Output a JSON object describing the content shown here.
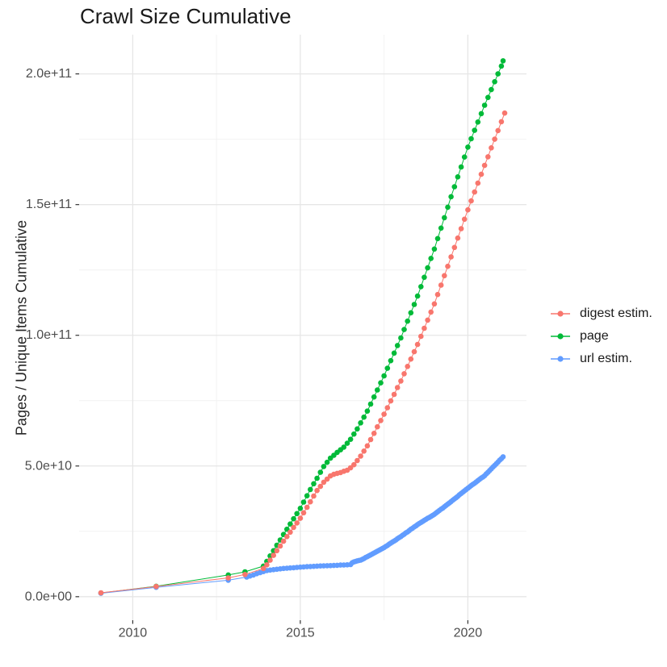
{
  "chart_data": {
    "type": "line",
    "points_visible": true,
    "title": "Crawl Size Cumulative",
    "xlabel": "",
    "ylabel": "Pages / Unique Items Cumulative",
    "units": "pages (values stored in billions, 1e9)",
    "grid": true,
    "legend": {
      "position": "right",
      "entries": [
        "digest estim.",
        "page",
        "url estim."
      ]
    },
    "x_axis": {
      "range": [
        2008.4,
        2021.75
      ],
      "ticks": [
        2010,
        2015,
        2020
      ],
      "tick_labels": [
        "2010",
        "2015",
        "2020"
      ],
      "minor_ticks": [
        2012.5,
        2017.5
      ]
    },
    "y_axis": {
      "range_billions": [
        -9,
        215
      ],
      "ticks_billions": [
        0,
        50,
        100,
        150,
        200
      ],
      "tick_labels": [
        "0.0e+00",
        "5.0e+10",
        "1.0e+11",
        "1.5e+11",
        "2.0e+11"
      ],
      "minor_ticks_billions": [
        25,
        75,
        125,
        175
      ]
    },
    "colors": {
      "digest": "#F8766D",
      "page": "#00BA38",
      "url": "#619CFF",
      "grid_major": "#e6e6e6",
      "grid_minor": "#f2f2f2",
      "tick_text": "#4d4d4d",
      "tick_mark": "#333333"
    },
    "series": [
      {
        "name": "digest estim.",
        "color": "#F8766D",
        "points": [
          [
            2009.05,
            1.5
          ],
          [
            2010.7,
            3.9
          ],
          [
            2012.85,
            7.2
          ],
          [
            2013.35,
            8.5
          ],
          [
            2013.9,
            10.8
          ],
          [
            2014.0,
            12.2
          ],
          [
            2014.1,
            14.0
          ],
          [
            2014.2,
            15.8
          ],
          [
            2014.3,
            17.6
          ],
          [
            2014.4,
            19.4
          ],
          [
            2014.5,
            21.2
          ],
          [
            2014.6,
            23.0
          ],
          [
            2014.7,
            24.7
          ],
          [
            2014.8,
            26.5
          ],
          [
            2014.9,
            28.2
          ],
          [
            2015.0,
            30.0
          ],
          [
            2015.1,
            32.1
          ],
          [
            2015.2,
            34.2
          ],
          [
            2015.3,
            36.3
          ],
          [
            2015.4,
            38.5
          ],
          [
            2015.5,
            40.6
          ],
          [
            2015.6,
            42.2
          ],
          [
            2015.7,
            43.8
          ],
          [
            2015.8,
            45.0
          ],
          [
            2015.9,
            46.2
          ],
          [
            2016.0,
            46.8
          ],
          [
            2016.1,
            47.2
          ],
          [
            2016.2,
            47.5
          ],
          [
            2016.3,
            48.0
          ],
          [
            2016.4,
            48.4
          ],
          [
            2016.5,
            49.3
          ],
          [
            2016.6,
            50.5
          ],
          [
            2016.7,
            52.1
          ],
          [
            2016.8,
            53.8
          ],
          [
            2016.9,
            55.7
          ],
          [
            2017.0,
            57.7
          ],
          [
            2017.1,
            60.1
          ],
          [
            2017.2,
            62.5
          ],
          [
            2017.3,
            65.0
          ],
          [
            2017.4,
            67.4
          ],
          [
            2017.5,
            69.8
          ],
          [
            2017.6,
            72.3
          ],
          [
            2017.7,
            74.9
          ],
          [
            2017.8,
            77.4
          ],
          [
            2017.9,
            80.0
          ],
          [
            2018.0,
            82.5
          ],
          [
            2018.1,
            85.3
          ],
          [
            2018.2,
            88.1
          ],
          [
            2018.3,
            90.9
          ],
          [
            2018.4,
            93.7
          ],
          [
            2018.5,
            96.5
          ],
          [
            2018.6,
            99.6
          ],
          [
            2018.7,
            102.7
          ],
          [
            2018.8,
            105.8
          ],
          [
            2018.9,
            108.9
          ],
          [
            2019.0,
            112.0
          ],
          [
            2019.1,
            115.6
          ],
          [
            2019.2,
            119.2
          ],
          [
            2019.3,
            122.8
          ],
          [
            2019.4,
            126.4
          ],
          [
            2019.5,
            130.0
          ],
          [
            2019.6,
            133.6
          ],
          [
            2019.7,
            137.2
          ],
          [
            2019.8,
            140.8
          ],
          [
            2019.9,
            144.4
          ],
          [
            2020.0,
            148.0
          ],
          [
            2020.1,
            151.4
          ],
          [
            2020.2,
            154.8
          ],
          [
            2020.3,
            158.2
          ],
          [
            2020.4,
            161.6
          ],
          [
            2020.5,
            165.0
          ],
          [
            2020.6,
            168.3
          ],
          [
            2020.7,
            171.7
          ],
          [
            2020.8,
            175.0
          ],
          [
            2020.9,
            178.3
          ],
          [
            2021.0,
            181.7
          ],
          [
            2021.1,
            185.0
          ]
        ]
      },
      {
        "name": "page",
        "color": "#00BA38",
        "points": [
          [
            2009.05,
            1.4
          ],
          [
            2010.7,
            4.0
          ],
          [
            2012.85,
            8.3
          ],
          [
            2013.35,
            9.5
          ],
          [
            2013.9,
            11.7
          ],
          [
            2014.0,
            13.5
          ],
          [
            2014.1,
            15.6
          ],
          [
            2014.2,
            17.6
          ],
          [
            2014.3,
            19.7
          ],
          [
            2014.4,
            21.7
          ],
          [
            2014.5,
            23.8
          ],
          [
            2014.6,
            25.8
          ],
          [
            2014.7,
            27.8
          ],
          [
            2014.8,
            29.8
          ],
          [
            2014.9,
            31.8
          ],
          [
            2015.0,
            33.8
          ],
          [
            2015.1,
            36.2
          ],
          [
            2015.2,
            38.6
          ],
          [
            2015.3,
            41.0
          ],
          [
            2015.4,
            43.2
          ],
          [
            2015.5,
            45.3
          ],
          [
            2015.6,
            47.6
          ],
          [
            2015.7,
            49.8
          ],
          [
            2015.8,
            51.4
          ],
          [
            2015.9,
            53.0
          ],
          [
            2016.0,
            54.1
          ],
          [
            2016.1,
            55.2
          ],
          [
            2016.2,
            56.2
          ],
          [
            2016.3,
            57.2
          ],
          [
            2016.4,
            58.7
          ],
          [
            2016.5,
            60.2
          ],
          [
            2016.6,
            62.2
          ],
          [
            2016.7,
            64.2
          ],
          [
            2016.8,
            66.5
          ],
          [
            2016.9,
            68.7
          ],
          [
            2017.0,
            71.0
          ],
          [
            2017.1,
            73.7
          ],
          [
            2017.2,
            76.4
          ],
          [
            2017.3,
            79.1
          ],
          [
            2017.4,
            81.8
          ],
          [
            2017.5,
            84.5
          ],
          [
            2017.6,
            87.4
          ],
          [
            2017.7,
            90.3
          ],
          [
            2017.8,
            93.2
          ],
          [
            2017.9,
            96.1
          ],
          [
            2018.0,
            99.0
          ],
          [
            2018.1,
            102.2
          ],
          [
            2018.2,
            105.4
          ],
          [
            2018.3,
            108.6
          ],
          [
            2018.4,
            111.8
          ],
          [
            2018.5,
            115.0
          ],
          [
            2018.6,
            118.6
          ],
          [
            2018.7,
            122.2
          ],
          [
            2018.8,
            125.8
          ],
          [
            2018.9,
            129.4
          ],
          [
            2019.0,
            133.0
          ],
          [
            2019.1,
            137.0
          ],
          [
            2019.2,
            141.0
          ],
          [
            2019.3,
            145.0
          ],
          [
            2019.4,
            149.0
          ],
          [
            2019.5,
            153.0
          ],
          [
            2019.6,
            156.8
          ],
          [
            2019.7,
            160.6
          ],
          [
            2019.8,
            164.4
          ],
          [
            2019.9,
            168.2
          ],
          [
            2020.0,
            172.0
          ],
          [
            2020.1,
            175.2
          ],
          [
            2020.2,
            178.4
          ],
          [
            2020.3,
            181.6
          ],
          [
            2020.4,
            184.8
          ],
          [
            2020.5,
            188.0
          ],
          [
            2020.6,
            191.0
          ],
          [
            2020.7,
            194.0
          ],
          [
            2020.8,
            197.0
          ],
          [
            2020.9,
            200.0
          ],
          [
            2021.0,
            203.0
          ],
          [
            2021.05,
            205.0
          ]
        ]
      },
      {
        "name": "url estim.",
        "color": "#619CFF",
        "points": [
          [
            2009.05,
            1.3
          ],
          [
            2010.7,
            3.6
          ],
          [
            2012.85,
            6.3
          ],
          [
            2013.4,
            7.5
          ],
          [
            2013.5,
            7.9
          ],
          [
            2013.6,
            8.3
          ],
          [
            2013.7,
            8.8
          ],
          [
            2013.8,
            9.2
          ],
          [
            2013.9,
            9.6
          ],
          [
            2014.0,
            10.0
          ],
          [
            2014.1,
            10.2
          ],
          [
            2014.2,
            10.35
          ],
          [
            2014.3,
            10.5
          ],
          [
            2014.4,
            10.65
          ],
          [
            2014.5,
            10.8
          ],
          [
            2014.6,
            10.9
          ],
          [
            2014.7,
            11.0
          ],
          [
            2014.8,
            11.1
          ],
          [
            2014.9,
            11.2
          ],
          [
            2015.0,
            11.3
          ],
          [
            2015.1,
            11.4
          ],
          [
            2015.2,
            11.5
          ],
          [
            2015.3,
            11.55
          ],
          [
            2015.4,
            11.6
          ],
          [
            2015.5,
            11.7
          ],
          [
            2015.6,
            11.75
          ],
          [
            2015.7,
            11.8
          ],
          [
            2015.8,
            11.85
          ],
          [
            2015.9,
            11.9
          ],
          [
            2016.0,
            11.95
          ],
          [
            2016.1,
            12.0
          ],
          [
            2016.2,
            12.1
          ],
          [
            2016.3,
            12.15
          ],
          [
            2016.4,
            12.2
          ],
          [
            2016.5,
            12.3
          ],
          [
            2016.55,
            13.0
          ],
          [
            2016.6,
            13.3
          ],
          [
            2016.65,
            13.5
          ],
          [
            2016.7,
            13.7
          ],
          [
            2016.75,
            13.85
          ],
          [
            2016.8,
            14.0
          ],
          [
            2016.85,
            14.3
          ],
          [
            2016.9,
            14.6
          ],
          [
            2016.95,
            15.0
          ],
          [
            2017.0,
            15.3
          ],
          [
            2017.05,
            15.65
          ],
          [
            2017.1,
            16.0
          ],
          [
            2017.15,
            16.35
          ],
          [
            2017.2,
            16.7
          ],
          [
            2017.25,
            17.05
          ],
          [
            2017.3,
            17.4
          ],
          [
            2017.35,
            17.75
          ],
          [
            2017.4,
            18.1
          ],
          [
            2017.45,
            18.45
          ],
          [
            2017.5,
            18.8
          ],
          [
            2017.55,
            19.2
          ],
          [
            2017.6,
            19.6
          ],
          [
            2017.65,
            20.1
          ],
          [
            2017.7,
            20.5
          ],
          [
            2017.75,
            20.9
          ],
          [
            2017.8,
            21.3
          ],
          [
            2017.85,
            21.7
          ],
          [
            2017.9,
            22.2
          ],
          [
            2017.95,
            22.6
          ],
          [
            2018.0,
            23.0
          ],
          [
            2018.05,
            23.5
          ],
          [
            2018.1,
            23.9
          ],
          [
            2018.15,
            24.4
          ],
          [
            2018.2,
            24.8
          ],
          [
            2018.25,
            25.3
          ],
          [
            2018.3,
            25.8
          ],
          [
            2018.35,
            26.2
          ],
          [
            2018.4,
            26.7
          ],
          [
            2018.45,
            27.1
          ],
          [
            2018.5,
            27.6
          ],
          [
            2018.55,
            28.0
          ],
          [
            2018.6,
            28.4
          ],
          [
            2018.65,
            28.8
          ],
          [
            2018.7,
            29.2
          ],
          [
            2018.75,
            29.6
          ],
          [
            2018.8,
            30.0
          ],
          [
            2018.85,
            30.3
          ],
          [
            2018.9,
            30.7
          ],
          [
            2018.95,
            31.1
          ],
          [
            2019.0,
            31.5
          ],
          [
            2019.05,
            32.0
          ],
          [
            2019.1,
            32.5
          ],
          [
            2019.15,
            33.0
          ],
          [
            2019.2,
            33.5
          ],
          [
            2019.25,
            33.9
          ],
          [
            2019.3,
            34.4
          ],
          [
            2019.35,
            34.9
          ],
          [
            2019.4,
            35.4
          ],
          [
            2019.45,
            35.9
          ],
          [
            2019.5,
            36.4
          ],
          [
            2019.55,
            36.9
          ],
          [
            2019.6,
            37.4
          ],
          [
            2019.65,
            37.9
          ],
          [
            2019.7,
            38.4
          ],
          [
            2019.75,
            39.0
          ],
          [
            2019.8,
            39.5
          ],
          [
            2019.85,
            40.0
          ],
          [
            2019.9,
            40.5
          ],
          [
            2019.95,
            41.0
          ],
          [
            2020.0,
            41.5
          ],
          [
            2020.05,
            42.0
          ],
          [
            2020.1,
            42.5
          ],
          [
            2020.15,
            43.0
          ],
          [
            2020.2,
            43.4
          ],
          [
            2020.25,
            43.9
          ],
          [
            2020.3,
            44.4
          ],
          [
            2020.35,
            44.9
          ],
          [
            2020.4,
            45.4
          ],
          [
            2020.45,
            45.8
          ],
          [
            2020.5,
            46.3
          ],
          [
            2020.55,
            47.0
          ],
          [
            2020.6,
            47.6
          ],
          [
            2020.65,
            48.3
          ],
          [
            2020.7,
            48.9
          ],
          [
            2020.75,
            49.6
          ],
          [
            2020.8,
            50.2
          ],
          [
            2020.85,
            50.9
          ],
          [
            2020.9,
            51.5
          ],
          [
            2020.95,
            52.2
          ],
          [
            2021.0,
            52.8
          ],
          [
            2021.05,
            53.5
          ]
        ]
      }
    ]
  }
}
